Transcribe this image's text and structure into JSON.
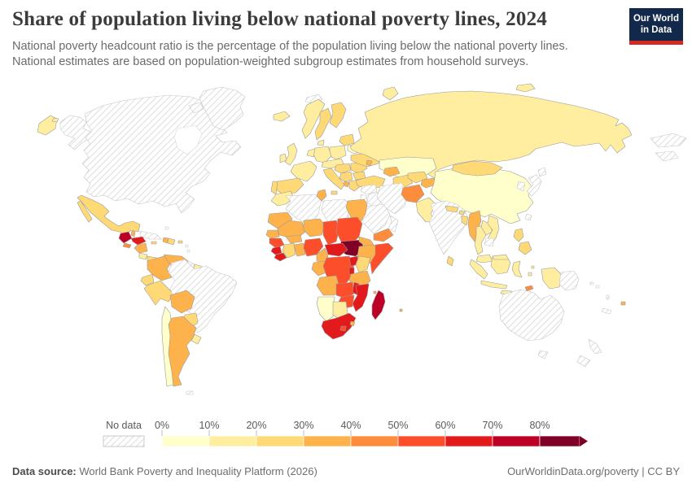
{
  "header": {
    "title": "Share of population living below national poverty lines, 2024",
    "subtitle_lines": [
      "National poverty headcount ratio is the percentage of the population living below the national poverty lines.",
      "National estimates are based on population-weighted subgroup estimates from household surveys."
    ]
  },
  "logo": {
    "line1": "Our World",
    "line2": "in Data",
    "bg_color": "#12294b",
    "stripe_color": "#d22a20"
  },
  "legend": {
    "no_data_label": "No data",
    "tick_labels": [
      "0%",
      "10%",
      "20%",
      "30%",
      "40%",
      "50%",
      "60%",
      "70%",
      "80%"
    ],
    "bin_colors": [
      "#ffffcc",
      "#ffeda0",
      "#fed976",
      "#feb24c",
      "#fd8d3c",
      "#fc4e2a",
      "#e31a1c",
      "#bd0026",
      "#800026"
    ],
    "text_color": "#5a5a5a"
  },
  "footer": {
    "source_label": "Data source:",
    "source_text": " World Bank Poverty and Inequality Platform (2026)",
    "right_text": "OurWorldinData.org/poverty | CC BY"
  },
  "chart_data": {
    "type": "choropleth_world_map",
    "title": "Share of population living below national poverty lines, 2024",
    "unit": "% of population",
    "legend_bins": [
      {
        "range": "0-10%",
        "color": "#ffffcc"
      },
      {
        "range": "10-20%",
        "color": "#ffeda0"
      },
      {
        "range": "20-30%",
        "color": "#fed976"
      },
      {
        "range": "30-40%",
        "color": "#feb24c"
      },
      {
        "range": "40-50%",
        "color": "#fd8d3c"
      },
      {
        "range": "50-60%",
        "color": "#fc4e2a"
      },
      {
        "range": "60-70%",
        "color": "#e31a1c"
      },
      {
        "range": "70-80%",
        "color": "#bd0026"
      },
      {
        "range": "80%+",
        "color": "#800026"
      }
    ],
    "no_data_style": "white with gray diagonal hatching",
    "regions": {
      "alaska": "nodata",
      "canada-usa": "nodata",
      "greenland": "nodata",
      "baffin": "nodata",
      "chukotka": "#ffeda0",
      "chukotka-dot": "#ffeda0",
      "mexico": "#fed976",
      "baja": "#fed976",
      "guatemala": "#bd0026",
      "belize": "#feb24c",
      "honduras": "#e31a1c",
      "el-salvador": "#fd8d3c",
      "nicaragua": "#feb24c",
      "costa-rica": "#ffeda0",
      "panama": "#fed976",
      "cuba": "nodata",
      "bahamas": "nodata",
      "jamaica": "#fed976",
      "haiti": "#feb24c",
      "dominican-republic": "#fed976",
      "puerto-rico": "#fed976",
      "lesser-antilles-1": "nodata",
      "lesser-antilles-2": "nodata",
      "colombia": "#feb24c",
      "venezuela": "#feb24c",
      "guyana": "nodata",
      "suriname": "#ffeda0",
      "french-guiana": "nodata",
      "ecuador": "#fed976",
      "peru": "#fed976",
      "brazil": "nodata",
      "bolivia": "#feb24c",
      "paraguay": "#fed976",
      "chile": "#ffffcc",
      "argentina": "#feb24c",
      "uruguay": "#ffeda0",
      "falklands": "nodata",
      "iceland": "#ffeda0",
      "svalbard": "nodata",
      "uk": "#ffeda0",
      "ireland": "#ffeda0",
      "norway": "#ffeda0",
      "sweden": "#fed976",
      "finland": "#fed976",
      "denmark": "#ffeda0",
      "baltics": "#fed976",
      "belarus": "#ffffcc",
      "poland": "#ffeda0",
      "germany": "#ffeda0",
      "benelux": "#ffeda0",
      "france": "#ffeda0",
      "spain": "#fed976",
      "portugal": "#fed976",
      "czech-austria": "#ffeda0",
      "italy": "#fed976",
      "sicily": "#fed976",
      "hungary-croatia": "#fed976",
      "serbia-bosnia": "#fed976",
      "albania": "#feb24c",
      "romania": "#fed976",
      "bulgaria": "#fed976",
      "greece": "#fed976",
      "ukraine": "#fed976",
      "moldova": "#feb24c",
      "turkey": "#fed976",
      "caucasus": "#feb24c",
      "russia": "#ffeda0",
      "novaya-zemlya": "#ffeda0",
      "new-siberian": "#ffeda0",
      "wrap-1": "nodata",
      "wrap-2": "nodata",
      "kazakhstan": "#ffffcc",
      "turkmenistan": "#fed976",
      "uzbekistan": "#fed976",
      "kyrgyz-tajik": "#feb24c",
      "afghanistan": "#fd8d3c",
      "pakistan": "#ffeda0",
      "india": "nodata",
      "nepal": "#fed976",
      "bhutan": "#fed976",
      "bangladesh": "#fed976",
      "sri-lanka": "#fed976",
      "myanmar": "#feb24c",
      "thailand": "#ffeda0",
      "laos": "#ffeda0",
      "vietnam": "#ffeda0",
      "cambodia": "nodata",
      "malaysia": "#ffeda0",
      "sumatra": "#ffeda0",
      "java": "#ffeda0",
      "borneo": "#ffeda0",
      "malaysia-borneo": "#ffeda0",
      "sulawesi": "#ffeda0",
      "lesser-sunda-1": "#ffeda0",
      "lesser-sunda-2": "#ffeda0",
      "timor": "#fd8d3c",
      "maluku-1": "#ffeda0",
      "maluku-2": "#ffeda0",
      "west-papua": "#ffeda0",
      "png": "nodata",
      "philippines-n": "#fed976",
      "philippines-s": "#fed976",
      "taiwan": "nodata",
      "china": "#ffffcc",
      "mongolia": "#fed976",
      "japan-north": "nodata",
      "japan-main": "nodata",
      "korea": "nodata",
      "syria": "nodata",
      "levant": "nodata",
      "iraq": "nodata",
      "iran": "nodata",
      "saudi": "nodata",
      "yemen": "#fd8d3c",
      "oman": "nodata",
      "morocco": "#ffeda0",
      "algeria": "nodata",
      "tunisia": "#feb24c",
      "libya": "nodata",
      "egypt": "#feb24c",
      "mauritania": "#feb24c",
      "mali": "#feb24c",
      "niger": "#feb24c",
      "chad": "#fc4e2a",
      "sudan": "#fc4e2a",
      "south-sudan": "#800026",
      "eritrea": "#feb24c",
      "ethiopia": "#feb24c",
      "somalia": "#fc4e2a",
      "senegal": "#feb24c",
      "guinea": "#fc4e2a",
      "sierra-leone": "#e31a1c",
      "liberia": "#e31a1c",
      "cote-divoire": "#fed976",
      "burkina": "#feb24c",
      "ghana": "#feb24c",
      "nigeria": "#fc4e2a",
      "cameroon": "#feb24c",
      "car": "#e31a1c",
      "gabon-congo": "#feb24c",
      "drc": "#fc4e2a",
      "uganda": "#e31a1c",
      "kenya": "#fed976",
      "rwanda-burundi": "#e31a1c",
      "tanzania": "#feb24c",
      "angola": "#feb24c",
      "zambia": "#fc4e2a",
      "malawi": "#e31a1c",
      "mozambique": "#e31a1c",
      "zimbabwe": "#fc4e2a",
      "namibia": "#ffffcc",
      "botswana": "#ffeda0",
      "south-africa": "#e31a1c",
      "lesotho": "#fc4e2a",
      "eswatini": "#feb24c",
      "madagascar": "#bd0026",
      "comoros": "#feb24c",
      "mauritius": "#feb24c",
      "australia": "nodata",
      "tasmania": "nodata",
      "nz-north": "nodata",
      "nz-south": "nodata",
      "new-caledonia": "nodata",
      "vanuatu": "nodata",
      "solomon-1": "nodata",
      "solomon-2": "nodata",
      "fiji": "#feb24c"
    }
  }
}
